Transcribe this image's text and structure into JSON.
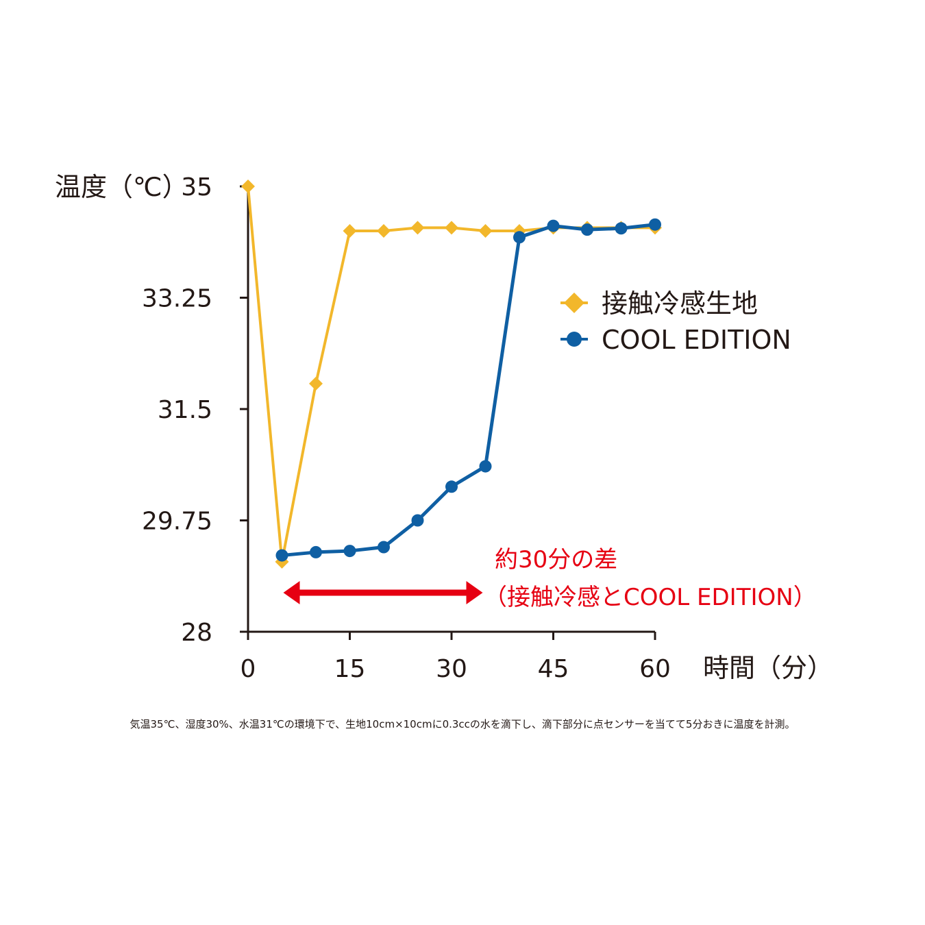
{
  "chart_data": {
    "type": "line",
    "ylabel": "温度（℃）",
    "xlabel": "時間（分）",
    "xlim": [
      0,
      60
    ],
    "ylim": [
      28,
      35
    ],
    "xticks": [
      0,
      15,
      30,
      45,
      60
    ],
    "xtick_labels": [
      "0",
      "15",
      "30",
      "45",
      "60"
    ],
    "yticks": [
      28,
      29.75,
      31.5,
      33.25,
      35
    ],
    "ytick_labels": [
      "28",
      "29.75",
      "31.5",
      "33.25",
      "35"
    ],
    "x": [
      0,
      5,
      10,
      15,
      20,
      25,
      30,
      35,
      40,
      45,
      50,
      55,
      60
    ],
    "series": [
      {
        "name": "接触冷感生地",
        "color": "#f2b72b",
        "marker": "diamond",
        "values": [
          35.0,
          29.1,
          31.9,
          34.3,
          34.3,
          34.35,
          34.35,
          34.3,
          34.3,
          34.35,
          34.35,
          34.35,
          34.35
        ]
      },
      {
        "name": "COOL EDITION",
        "color": "#0f5fa3",
        "marker": "circle",
        "values": [
          null,
          29.2,
          29.25,
          29.27,
          29.33,
          29.75,
          30.28,
          30.6,
          34.2,
          34.38,
          34.32,
          34.34,
          34.4
        ]
      }
    ],
    "legend_position": "right",
    "grid": false,
    "annotation": {
      "line1": "約30分の差",
      "line2": "（接触冷感とCOOL EDITION）",
      "color": "#e60012",
      "arrow_from_x": 5,
      "arrow_to_x": 35
    }
  },
  "footnote": "気温35℃、湿度30%、水温31℃の環境下で、生地10cm×10cmに0.3ccの水を滴下し、滴下部分に点センサーを当てて5分おきに温度を計測。"
}
